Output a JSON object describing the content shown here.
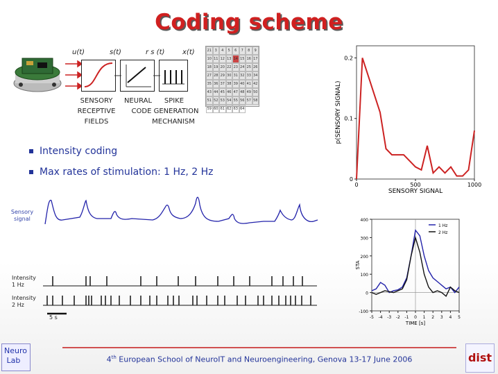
{
  "title": "Coding scheme",
  "diagram": {
    "signal_labels": [
      "u(t)",
      "s(t)",
      "r s (t)",
      "x(t)"
    ],
    "sensory_caption": [
      "SENSORY",
      "RECEPTIVE",
      "FIELDS"
    ],
    "neural_caption": [
      "NEURAL",
      "CODE GENERATION"
    ],
    "spike_caption": [
      "SPIKE",
      "MECHANISM"
    ],
    "grid_numbers": [
      "21",
      "3",
      "4",
      "5",
      "6",
      "7",
      "8",
      "9",
      "10",
      "11",
      "12",
      "13",
      "14",
      "15",
      "16",
      "17",
      "18",
      "19",
      "20",
      "22",
      "23",
      "24",
      "25",
      "26",
      "27",
      "28",
      "29",
      "30",
      "31",
      "32",
      "33",
      "34",
      "35",
      "36",
      "37",
      "38",
      "39",
      "40",
      "41",
      "42",
      "43",
      "44",
      "45",
      "46",
      "47",
      "48",
      "49",
      "50",
      "51",
      "52",
      "53",
      "54",
      "55",
      "56",
      "57",
      "58",
      "59",
      "60",
      "61",
      "62",
      "63",
      "64"
    ]
  },
  "bullets": [
    "Intensity coding",
    "Max rates of stimulation: 1 Hz, 2 Hz"
  ],
  "traces": {
    "sensory_label": "Sensory signal",
    "intensity_1hz_label": "Intensity 1 Hz",
    "intensity_2hz_label": "Intensity 2 Hz",
    "scale_label": "5 s"
  },
  "colors": {
    "accent": "#d02020",
    "blue": "#223399"
  },
  "chart_data": [
    {
      "type": "line",
      "xlabel": "SENSORY SIGNAL",
      "ylabel": "p(SENSORY SIGNAL)",
      "xlim": [
        0,
        1000
      ],
      "ylim": [
        0,
        0.22
      ],
      "xticks": [
        "0",
        "500",
        "1000"
      ],
      "yticks": [
        "0",
        "0.1",
        "0.2"
      ],
      "x": [
        0,
        50,
        150,
        200,
        250,
        300,
        400,
        450,
        500,
        550,
        600,
        650,
        700,
        750,
        800,
        850,
        900,
        950,
        1000
      ],
      "series": [
        {
          "values": [
            0.0,
            0.2,
            0.14,
            0.11,
            0.05,
            0.04,
            0.04,
            0.03,
            0.02,
            0.015,
            0.055,
            0.01,
            0.02,
            0.01,
            0.02,
            0.005,
            0.005,
            0.015,
            0.08
          ]
        }
      ],
      "color": "#cc2222"
    },
    {
      "type": "line",
      "xlabel": "TIME [s]",
      "ylabel": "STA",
      "xlim": [
        -5,
        5
      ],
      "ylim": [
        -100,
        400
      ],
      "xticks": [
        "-5",
        "-4",
        "-3",
        "-2",
        "-1",
        "0",
        "1",
        "2",
        "3",
        "4",
        "5"
      ],
      "yticks": [
        "-100",
        "0",
        "100",
        "200",
        "300",
        "400"
      ],
      "legend": "top-right",
      "x": [
        -5,
        -4.5,
        -4,
        -3.5,
        -3,
        -2.5,
        -2,
        -1.5,
        -1,
        -0.5,
        0,
        0.5,
        1,
        1.5,
        2,
        2.5,
        3,
        3.5,
        4,
        4.5,
        5
      ],
      "series": [
        {
          "name": "1 Hz",
          "color": "#2222aa",
          "values": [
            10,
            20,
            55,
            40,
            0,
            10,
            15,
            30,
            80,
            200,
            340,
            310,
            200,
            120,
            80,
            60,
            40,
            20,
            30,
            0,
            30
          ]
        },
        {
          "name": "2 Hz",
          "color": "#111111",
          "values": [
            0,
            -10,
            0,
            10,
            5,
            0,
            10,
            20,
            70,
            200,
            300,
            220,
            100,
            30,
            0,
            10,
            0,
            -20,
            30,
            10,
            0
          ]
        }
      ]
    }
  ]
}
